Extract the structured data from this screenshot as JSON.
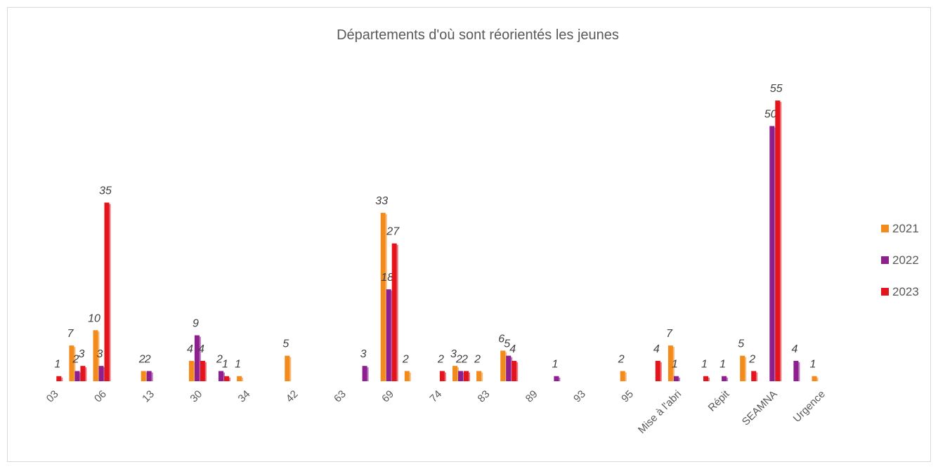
{
  "chart_data": {
    "type": "bar",
    "title": "Départements d'où sont réorientés les jeunes",
    "categories": [
      "03",
      null,
      "06",
      null,
      "13",
      null,
      "30",
      null,
      "34",
      null,
      "42",
      null,
      "63",
      null,
      "69",
      null,
      "74",
      null,
      "83",
      null,
      "89",
      null,
      "93",
      null,
      "95",
      null,
      "Mise à l'abri",
      null,
      "Répit",
      null,
      "SEAMNA",
      null,
      "Urgence"
    ],
    "series": [
      {
        "name": "2021",
        "color": "#f28a1c",
        "values": [
          null,
          7,
          10,
          null,
          2,
          null,
          4,
          null,
          1,
          null,
          5,
          null,
          null,
          null,
          33,
          2,
          null,
          3,
          2,
          6,
          null,
          null,
          null,
          null,
          2,
          null,
          7,
          null,
          null,
          5,
          null,
          null,
          1
        ]
      },
      {
        "name": "2022",
        "color": "#8e1f8e",
        "values": [
          null,
          2,
          3,
          null,
          2,
          null,
          9,
          2,
          null,
          null,
          null,
          null,
          null,
          3,
          18,
          null,
          null,
          2,
          null,
          5,
          null,
          1,
          null,
          null,
          null,
          null,
          1,
          null,
          1,
          null,
          50,
          4,
          null
        ]
      },
      {
        "name": "2023",
        "color": "#e3141c",
        "values": [
          1,
          3,
          35,
          null,
          null,
          null,
          4,
          1,
          null,
          null,
          null,
          null,
          null,
          null,
          27,
          null,
          2,
          2,
          null,
          4,
          null,
          null,
          null,
          null,
          null,
          4,
          null,
          1,
          null,
          2,
          55,
          null,
          null
        ]
      }
    ],
    "legend": "right"
  }
}
